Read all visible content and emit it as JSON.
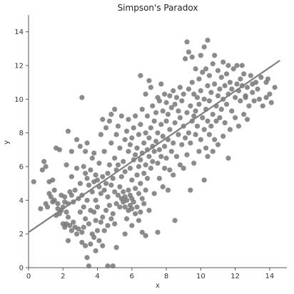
{
  "chart_data": {
    "type": "scatter",
    "title": "Simpson's Paradox",
    "xlabel": "x",
    "ylabel": "y",
    "xlim": [
      0,
      15
    ],
    "ylim": [
      0,
      15
    ],
    "xticks": [
      "0",
      "2",
      "4",
      "6",
      "8",
      "10",
      "12",
      "14"
    ],
    "yticks": [
      "0",
      "2",
      "4",
      "6",
      "8",
      "10",
      "12",
      "14"
    ],
    "grid": false,
    "colors": {
      "points": "#777777",
      "line": "#808080",
      "axis": "#555555"
    },
    "trend_line": {
      "x": [
        0,
        14.6
      ],
      "y": [
        2.1,
        12.3
      ]
    },
    "points": [
      [
        0.3,
        5.1
      ],
      [
        0.7,
        3.5
      ],
      [
        0.8,
        5.8
      ],
      [
        0.9,
        6.3
      ],
      [
        1.0,
        3.8
      ],
      [
        1.0,
        6.0
      ],
      [
        1.1,
        3.6
      ],
      [
        1.2,
        4.4
      ],
      [
        1.2,
        5.1
      ],
      [
        1.3,
        4.2
      ],
      [
        1.4,
        3.9
      ],
      [
        1.4,
        5.2
      ],
      [
        1.5,
        4.0
      ],
      [
        1.5,
        4.6
      ],
      [
        1.6,
        3.1
      ],
      [
        1.6,
        7.1
      ],
      [
        1.7,
        3.5
      ],
      [
        1.7,
        3.8
      ],
      [
        1.8,
        3.2
      ],
      [
        1.8,
        7.0
      ],
      [
        1.9,
        3.4
      ],
      [
        1.9,
        4.3
      ],
      [
        2.0,
        2.6
      ],
      [
        2.0,
        3.6
      ],
      [
        2.1,
        2.4
      ],
      [
        2.1,
        3.9
      ],
      [
        2.1,
        4.2
      ],
      [
        2.2,
        2.6
      ],
      [
        2.2,
        3.3
      ],
      [
        2.2,
        6.1
      ],
      [
        2.3,
        1.6
      ],
      [
        2.3,
        3.0
      ],
      [
        2.3,
        3.8
      ],
      [
        2.3,
        8.1
      ],
      [
        2.4,
        2.5
      ],
      [
        2.4,
        4.5
      ],
      [
        2.5,
        2.2
      ],
      [
        2.5,
        4.3
      ],
      [
        2.5,
        5.4
      ],
      [
        2.5,
        6.9
      ],
      [
        2.6,
        2.7
      ],
      [
        2.6,
        3.9
      ],
      [
        2.7,
        2.4
      ],
      [
        2.7,
        4.6
      ],
      [
        2.8,
        2.0
      ],
      [
        2.8,
        5.9
      ],
      [
        2.8,
        7.6
      ],
      [
        2.9,
        2.3
      ],
      [
        2.9,
        4.1
      ],
      [
        3.0,
        3.3
      ],
      [
        3.0,
        5.0
      ],
      [
        3.0,
        7.2
      ],
      [
        3.1,
        1.5
      ],
      [
        3.1,
        2.1
      ],
      [
        3.1,
        4.3
      ],
      [
        3.1,
        10.1
      ],
      [
        3.2,
        2.4
      ],
      [
        3.2,
        3.6
      ],
      [
        3.2,
        6.0
      ],
      [
        3.3,
        1.3
      ],
      [
        3.3,
        2.9
      ],
      [
        3.3,
        5.6
      ],
      [
        3.3,
        6.9
      ],
      [
        3.4,
        0.6
      ],
      [
        3.4,
        4.0
      ],
      [
        3.4,
        5.3
      ],
      [
        3.4,
        7.4
      ],
      [
        3.5,
        0.1
      ],
      [
        3.5,
        2.6
      ],
      [
        3.5,
        4.9
      ],
      [
        3.6,
        1.4
      ],
      [
        3.6,
        3.4
      ],
      [
        3.6,
        5.8
      ],
      [
        3.7,
        2.0
      ],
      [
        3.7,
        4.5
      ],
      [
        3.7,
        6.5
      ],
      [
        3.8,
        1.8
      ],
      [
        3.8,
        3.3
      ],
      [
        3.8,
        5.1
      ],
      [
        3.8,
        6.8
      ],
      [
        3.9,
        1.0
      ],
      [
        3.9,
        2.8
      ],
      [
        3.9,
        4.0
      ],
      [
        3.9,
        5.5
      ],
      [
        4.0,
        2.2
      ],
      [
        4.0,
        3.6
      ],
      [
        4.0,
        5.2
      ],
      [
        4.1,
        1.6
      ],
      [
        4.1,
        4.8
      ],
      [
        4.1,
        6.2
      ],
      [
        4.2,
        2.7
      ],
      [
        4.2,
        4.4
      ],
      [
        4.2,
        7.9
      ],
      [
        4.3,
        1.3
      ],
      [
        4.3,
        3.0
      ],
      [
        4.3,
        5.4
      ],
      [
        4.3,
        8.8
      ],
      [
        4.4,
        2.2
      ],
      [
        4.4,
        4.6
      ],
      [
        4.4,
        6.9
      ],
      [
        4.5,
        3.4
      ],
      [
        4.5,
        5.0
      ],
      [
        4.5,
        8.3
      ],
      [
        4.6,
        0.1
      ],
      [
        4.6,
        2.5
      ],
      [
        4.6,
        4.2
      ],
      [
        4.6,
        5.6
      ],
      [
        4.7,
        3.7
      ],
      [
        4.7,
        6.1
      ],
      [
        4.7,
        8.7
      ],
      [
        4.8,
        2.9
      ],
      [
        4.8,
        4.9
      ],
      [
        4.8,
        7.4
      ],
      [
        4.8,
        9.1
      ],
      [
        4.9,
        0.1
      ],
      [
        4.9,
        3.2
      ],
      [
        4.9,
        5.3
      ],
      [
        5.0,
        2.6
      ],
      [
        5.0,
        4.5
      ],
      [
        5.0,
        6.5
      ],
      [
        5.0,
        9.4
      ],
      [
        5.1,
        1.2
      ],
      [
        5.1,
        3.8
      ],
      [
        5.1,
        5.8
      ],
      [
        5.1,
        7.9
      ],
      [
        5.2,
        4.3
      ],
      [
        5.2,
        6.1
      ],
      [
        5.2,
        8.4
      ],
      [
        5.3,
        3.6
      ],
      [
        5.3,
        4.8
      ],
      [
        5.3,
        7.1
      ],
      [
        5.4,
        4.1
      ],
      [
        5.4,
        5.4
      ],
      [
        5.4,
        9.0
      ],
      [
        5.5,
        3.9
      ],
      [
        5.5,
        4.5
      ],
      [
        5.5,
        6.3
      ],
      [
        5.6,
        2.0
      ],
      [
        5.6,
        3.6
      ],
      [
        5.6,
        4.2
      ],
      [
        5.6,
        5.7
      ],
      [
        5.6,
        7.6
      ],
      [
        5.7,
        2.9
      ],
      [
        5.7,
        4.0
      ],
      [
        5.7,
        8.1
      ],
      [
        5.8,
        3.4
      ],
      [
        5.8,
        4.6
      ],
      [
        5.8,
        6.9
      ],
      [
        5.8,
        8.8
      ],
      [
        5.9,
        3.7
      ],
      [
        5.9,
        4.3
      ],
      [
        5.9,
        5.9
      ],
      [
        5.9,
        7.3
      ],
      [
        6.0,
        2.5
      ],
      [
        6.0,
        3.5
      ],
      [
        6.0,
        4.1
      ],
      [
        6.0,
        5.2
      ],
      [
        6.0,
        7.7
      ],
      [
        6.1,
        3.9
      ],
      [
        6.1,
        6.4
      ],
      [
        6.1,
        8.3
      ],
      [
        6.2,
        3.2
      ],
      [
        6.2,
        4.7
      ],
      [
        6.2,
        6.7
      ],
      [
        6.2,
        9.0
      ],
      [
        6.3,
        3.6
      ],
      [
        6.3,
        5.5
      ],
      [
        6.3,
        7.1
      ],
      [
        6.4,
        2.8
      ],
      [
        6.4,
        4.4
      ],
      [
        6.4,
        6.0
      ],
      [
        6.4,
        7.9
      ],
      [
        6.5,
        3.3
      ],
      [
        6.5,
        5.0
      ],
      [
        6.5,
        6.4
      ],
      [
        6.5,
        8.5
      ],
      [
        6.5,
        11.4
      ],
      [
        6.6,
        2.1
      ],
      [
        6.6,
        4.1
      ],
      [
        6.6,
        6.8
      ],
      [
        6.6,
        9.4
      ],
      [
        6.7,
        3.8
      ],
      [
        6.7,
        5.6
      ],
      [
        6.7,
        7.4
      ],
      [
        6.8,
        1.9
      ],
      [
        6.8,
        4.6
      ],
      [
        6.8,
        6.1
      ],
      [
        6.8,
        8.0
      ],
      [
        6.8,
        10.3
      ],
      [
        6.9,
        5.3
      ],
      [
        6.9,
        7.0
      ],
      [
        6.9,
        9.0
      ],
      [
        7.0,
        3.4
      ],
      [
        7.0,
        6.6
      ],
      [
        7.0,
        7.7
      ],
      [
        7.0,
        11.1
      ],
      [
        7.1,
        5.9
      ],
      [
        7.1,
        8.3
      ],
      [
        7.1,
        10.7
      ],
      [
        7.2,
        6.3
      ],
      [
        7.2,
        7.2
      ],
      [
        7.2,
        9.6
      ],
      [
        7.3,
        4.4
      ],
      [
        7.3,
        6.9
      ],
      [
        7.3,
        8.7
      ],
      [
        7.4,
        7.5
      ],
      [
        7.4,
        9.2
      ],
      [
        7.5,
        2.1
      ],
      [
        7.5,
        6.2
      ],
      [
        7.5,
        8.0
      ],
      [
        7.5,
        10.1
      ],
      [
        7.6,
        5.3
      ],
      [
        7.6,
        7.0
      ],
      [
        7.6,
        9.9
      ],
      [
        7.7,
        6.6
      ],
      [
        7.7,
        8.5
      ],
      [
        7.7,
        10.9
      ],
      [
        7.8,
        4.8
      ],
      [
        7.8,
        7.8
      ],
      [
        7.8,
        9.3
      ],
      [
        7.9,
        5.9
      ],
      [
        7.9,
        7.2
      ],
      [
        7.9,
        10.3
      ],
      [
        8.0,
        6.5
      ],
      [
        8.0,
        8.7
      ],
      [
        8.0,
        9.8
      ],
      [
        8.1,
        4.6
      ],
      [
        8.1,
        7.6
      ],
      [
        8.1,
        9.1
      ],
      [
        8.2,
        5.8
      ],
      [
        8.2,
        8.2
      ],
      [
        8.2,
        10.2
      ],
      [
        8.3,
        6.9
      ],
      [
        8.3,
        9.5
      ],
      [
        8.4,
        5.5
      ],
      [
        8.4,
        7.4
      ],
      [
        8.4,
        10.5
      ],
      [
        8.5,
        2.8
      ],
      [
        8.5,
        8.6
      ],
      [
        8.5,
        9.7
      ],
      [
        8.6,
        6.6
      ],
      [
        8.6,
        10.1
      ],
      [
        8.7,
        7.9
      ],
      [
        8.7,
        9.3
      ],
      [
        8.8,
        6.1
      ],
      [
        8.8,
        8.9
      ],
      [
        8.8,
        10.7
      ],
      [
        8.9,
        7.3
      ],
      [
        8.9,
        9.9
      ],
      [
        9.0,
        5.9
      ],
      [
        9.0,
        8.4
      ],
      [
        9.0,
        10.3
      ],
      [
        9.1,
        7.7
      ],
      [
        9.1,
        12.4
      ],
      [
        9.2,
        6.7
      ],
      [
        9.2,
        9.2
      ],
      [
        9.2,
        13.4
      ],
      [
        9.3,
        8.0
      ],
      [
        9.3,
        10.6
      ],
      [
        9.3,
        12.8
      ],
      [
        9.4,
        4.6
      ],
      [
        9.4,
        7.4
      ],
      [
        9.4,
        9.6
      ],
      [
        9.5,
        8.7
      ],
      [
        9.5,
        11.0
      ],
      [
        9.5,
        12.5
      ],
      [
        9.6,
        6.2
      ],
      [
        9.6,
        9.0
      ],
      [
        9.6,
        10.3
      ],
      [
        9.7,
        7.9
      ],
      [
        9.7,
        9.3
      ],
      [
        9.7,
        11.8
      ],
      [
        9.8,
        8.4
      ],
      [
        9.8,
        10.1
      ],
      [
        9.9,
        6.9
      ],
      [
        9.9,
        9.7
      ],
      [
        9.9,
        11.2
      ],
      [
        10.0,
        7.6
      ],
      [
        10.0,
        10.5
      ],
      [
        10.0,
        12.6
      ],
      [
        10.1,
        8.9
      ],
      [
        10.1,
        11.6
      ],
      [
        10.2,
        5.2
      ],
      [
        10.2,
        8.2
      ],
      [
        10.2,
        10.0
      ],
      [
        10.2,
        13.1
      ],
      [
        10.3,
        7.1
      ],
      [
        10.3,
        9.4
      ],
      [
        10.3,
        11.8
      ],
      [
        10.4,
        6.6
      ],
      [
        10.4,
        8.7
      ],
      [
        10.4,
        10.8
      ],
      [
        10.4,
        13.5
      ],
      [
        10.5,
        7.9
      ],
      [
        10.5,
        9.9
      ],
      [
        10.5,
        11.4
      ],
      [
        10.6,
        8.4
      ],
      [
        10.6,
        10.4
      ],
      [
        10.7,
        6.9
      ],
      [
        10.7,
        9.1
      ],
      [
        10.7,
        12.1
      ],
      [
        10.8,
        7.6
      ],
      [
        10.8,
        10.9
      ],
      [
        10.8,
        12.6
      ],
      [
        10.9,
        8.7
      ],
      [
        10.9,
        9.6
      ],
      [
        11.0,
        7.3
      ],
      [
        11.0,
        10.2
      ],
      [
        11.0,
        11.7
      ],
      [
        11.1,
        8.9
      ],
      [
        11.1,
        10.6
      ],
      [
        11.2,
        9.4
      ],
      [
        11.2,
        11.3
      ],
      [
        11.3,
        7.8
      ],
      [
        11.3,
        10.0
      ],
      [
        11.3,
        12.2
      ],
      [
        11.4,
        8.6
      ],
      [
        11.4,
        10.8
      ],
      [
        11.5,
        9.7
      ],
      [
        11.5,
        11.5
      ],
      [
        11.6,
        6.5
      ],
      [
        11.6,
        10.3
      ],
      [
        11.6,
        12.0
      ],
      [
        11.7,
        8.2
      ],
      [
        11.7,
        11.0
      ],
      [
        11.8,
        9.3
      ],
      [
        11.8,
        10.6
      ],
      [
        11.9,
        11.8
      ],
      [
        12.0,
        8.9
      ],
      [
        12.0,
        10.1
      ],
      [
        12.1,
        10.9
      ],
      [
        12.1,
        12.0
      ],
      [
        12.2,
        8.4
      ],
      [
        12.2,
        10.5
      ],
      [
        12.3,
        9.9
      ],
      [
        12.3,
        11.2
      ],
      [
        12.4,
        10.8
      ],
      [
        12.5,
        9.1
      ],
      [
        12.5,
        11.5
      ],
      [
        12.6,
        10.2
      ],
      [
        12.7,
        8.8
      ],
      [
        12.7,
        10.7
      ],
      [
        12.8,
        9.6
      ],
      [
        12.9,
        11.4
      ],
      [
        13.0,
        10.4
      ],
      [
        13.1,
        9.9
      ],
      [
        13.2,
        11.0
      ],
      [
        13.3,
        10.6
      ],
      [
        13.5,
        11.3
      ],
      [
        13.6,
        9.6
      ],
      [
        13.8,
        10.1
      ],
      [
        13.9,
        11.2
      ],
      [
        14.1,
        9.8
      ],
      [
        14.3,
        10.7
      ],
      [
        12.4,
        12.0
      ],
      [
        12.6,
        10.1
      ],
      [
        13.0,
        10.9
      ],
      [
        13.4,
        10.0
      ],
      [
        13.8,
        11.0
      ],
      [
        14.0,
        10.3
      ]
    ]
  }
}
